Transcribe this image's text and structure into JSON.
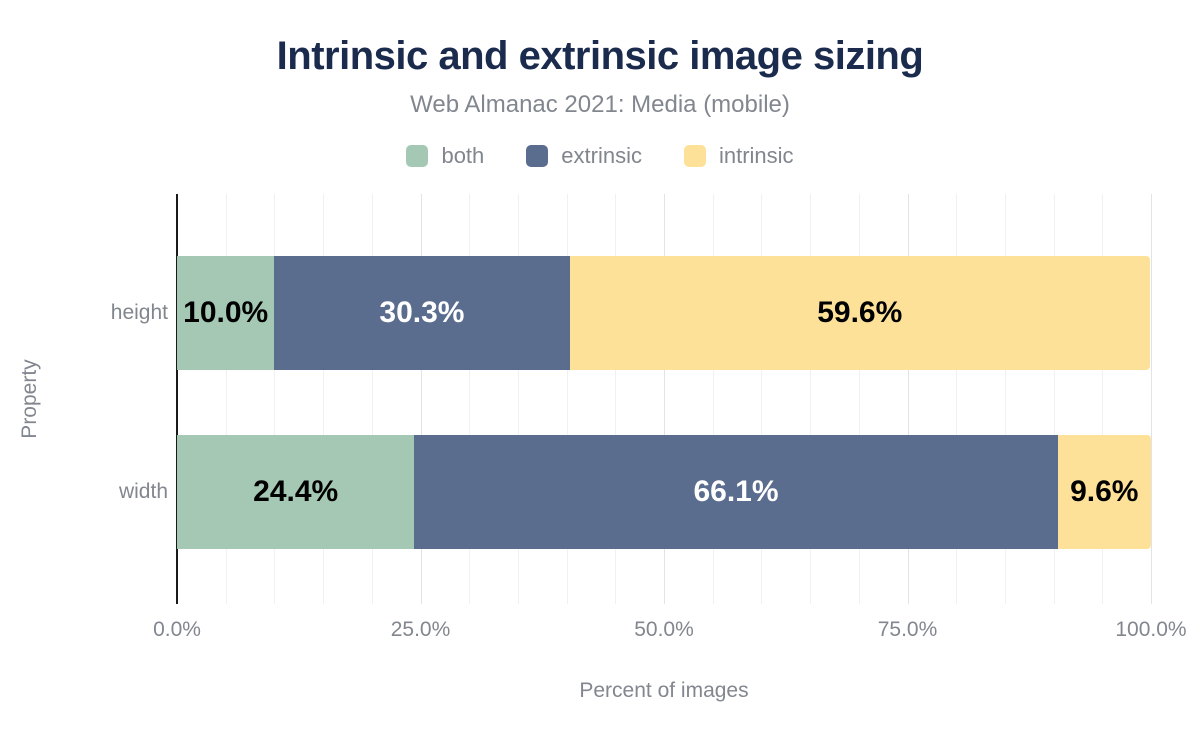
{
  "header": {
    "title": "Intrinsic and extrinsic image sizing",
    "subtitle": "Web Almanac 2021: Media (mobile)"
  },
  "colors": {
    "background": "#ffffff",
    "title_text": "#1b2b4d",
    "muted_text": "#82878f",
    "axis_line": "#1a1a1a",
    "gridline_minor": "#f1f1f1",
    "gridline_major": "#e3e3e3",
    "series_both": "#a4c8b4",
    "series_extrinsic": "#5b6d8e",
    "series_intrinsic": "#fde198"
  },
  "chart_data": {
    "type": "bar",
    "orientation": "horizontal",
    "stacked": true,
    "title": "Intrinsic and extrinsic image sizing",
    "subtitle": "Web Almanac 2021: Media (mobile)",
    "categories": [
      "height",
      "width"
    ],
    "series": [
      {
        "name": "both",
        "color": "#a4c8b4",
        "label_color": "#000000",
        "values": [
          10.0,
          24.4
        ],
        "labels": [
          "10.0%",
          "24.4%"
        ]
      },
      {
        "name": "extrinsic",
        "color": "#5b6d8e",
        "label_color": "#ffffff",
        "values": [
          30.3,
          66.1
        ],
        "labels": [
          "30.3%",
          "66.1%"
        ]
      },
      {
        "name": "intrinsic",
        "color": "#fde198",
        "label_color": "#000000",
        "values": [
          59.6,
          9.6
        ],
        "labels": [
          "59.6%",
          "9.6%"
        ]
      }
    ],
    "xlabel": "Percent of images",
    "ylabel": "Property",
    "xlim": [
      0,
      100
    ],
    "x_ticks": [
      {
        "value": 0,
        "label": "0.0%"
      },
      {
        "value": 25,
        "label": "25.0%"
      },
      {
        "value": 50,
        "label": "50.0%"
      },
      {
        "value": 75,
        "label": "75.0%"
      },
      {
        "value": 100,
        "label": "100.0%"
      }
    ],
    "grid": {
      "minor_step": 5,
      "major_step": 25,
      "visible": true
    },
    "legend_position": "top"
  }
}
